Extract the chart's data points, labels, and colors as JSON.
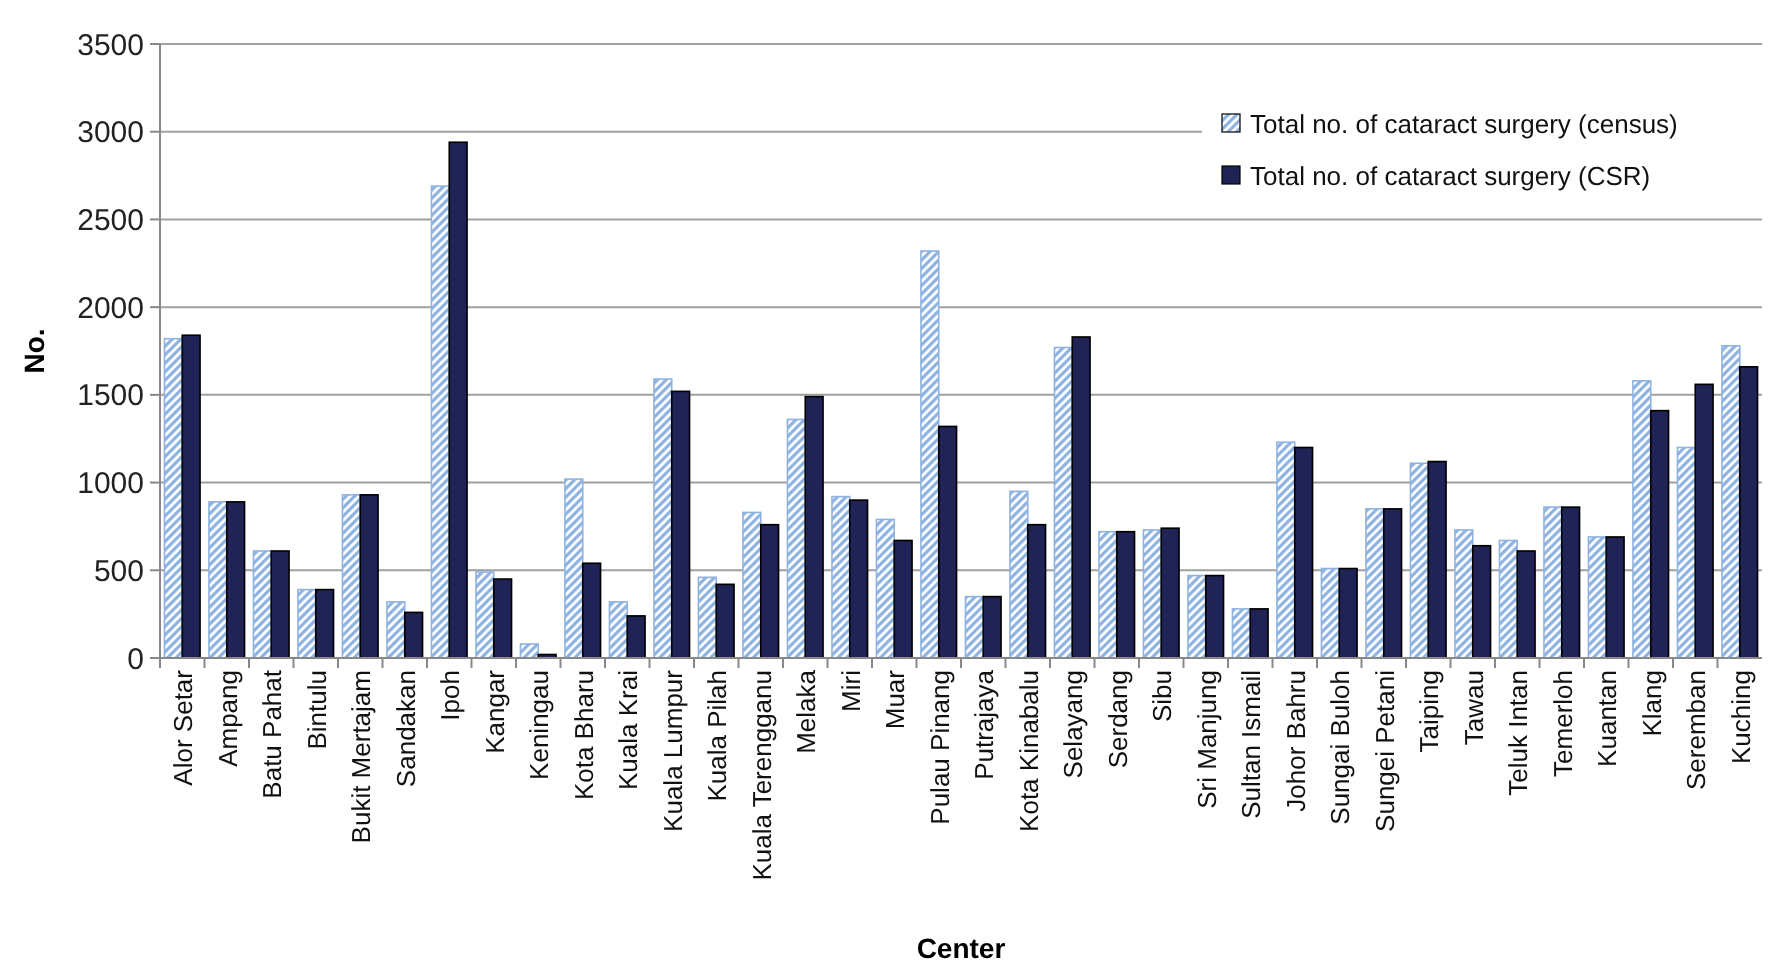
{
  "chart_data": {
    "type": "bar",
    "xlabel": "Center",
    "ylabel": "No.",
    "categories": [
      "Alor Setar",
      "Ampang",
      "Batu Pahat",
      "Bintulu",
      "Bukit Mertajam",
      "Sandakan",
      "Ipoh",
      "Kangar",
      "Keningau",
      "Kota Bharu",
      "Kuala Krai",
      "Kuala Lumpur",
      "Kuala Pilah",
      "Kuala Terengganu",
      "Melaka",
      "Miri",
      "Muar",
      "Pulau Pinang",
      "Putrajaya",
      "Kota Kinabalu",
      "Selayang",
      "Serdang",
      "Sibu",
      "Sri Manjung",
      "Sultan Ismail",
      "Johor Bahru",
      "Sungai Buloh",
      "Sungei Petani",
      "Taiping",
      "Tawau",
      "Teluk Intan",
      "Temerloh",
      "Kuantan",
      "Klang",
      "Seremban",
      "Kuching"
    ],
    "series": [
      {
        "name": "Total no. of cataract surgery (census)",
        "color": "#8fb3e0",
        "values": [
          1820,
          890,
          610,
          390,
          930,
          320,
          2690,
          490,
          80,
          1020,
          320,
          1590,
          460,
          830,
          1360,
          920,
          790,
          2320,
          350,
          950,
          1770,
          720,
          730,
          470,
          280,
          1230,
          510,
          850,
          1110,
          730,
          670,
          860,
          690,
          1580,
          1200,
          1780
        ]
      },
      {
        "name": "Total no. of cataract surgery (CSR)",
        "color": "#1f2355",
        "values": [
          1840,
          890,
          610,
          390,
          930,
          260,
          2940,
          450,
          20,
          540,
          240,
          1520,
          420,
          760,
          1490,
          900,
          670,
          1320,
          350,
          760,
          1830,
          720,
          740,
          470,
          280,
          1200,
          510,
          850,
          1120,
          640,
          610,
          860,
          690,
          1410,
          1560,
          1660
        ]
      }
    ],
    "ylim": [
      0,
      3500
    ],
    "yticks": [
      0,
      500,
      1000,
      1500,
      2000,
      2500,
      3000,
      3500
    ],
    "grid": "y",
    "legend": "top right"
  }
}
